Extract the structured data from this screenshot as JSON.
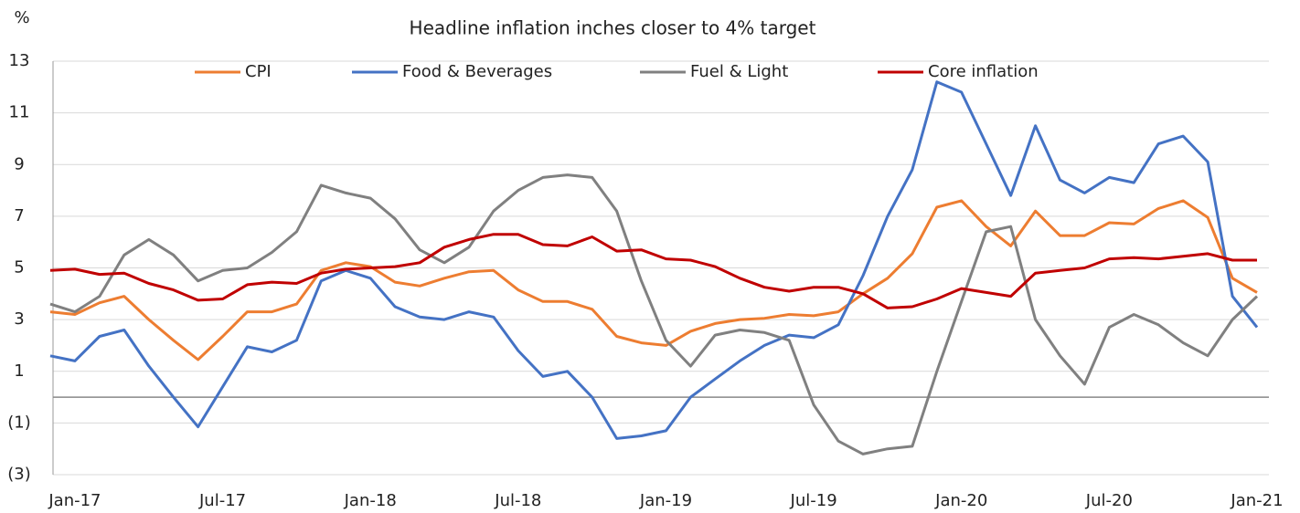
{
  "chart_data": {
    "type": "line",
    "title": "Headline inflation inches closer to 4% target",
    "y_label": "%",
    "categories": [
      null,
      "Jan-17",
      null,
      null,
      null,
      null,
      null,
      "Jul-17",
      null,
      null,
      null,
      null,
      null,
      "Jan-18",
      null,
      null,
      null,
      null,
      null,
      "Jul-18",
      null,
      null,
      null,
      null,
      null,
      "Jan-19",
      null,
      null,
      null,
      null,
      null,
      "Jul-19",
      null,
      null,
      null,
      null,
      null,
      "Jan-20",
      null,
      null,
      null,
      null,
      null,
      "Jul-20",
      null,
      null,
      null,
      null,
      null,
      "Jan-21"
    ],
    "series": [
      {
        "name": "CPI",
        "color": "#ed7d31",
        "values": [
          3.3,
          3.2,
          3.65,
          3.9,
          3.0,
          2.2,
          1.45,
          2.35,
          3.3,
          3.3,
          3.6,
          4.9,
          5.2,
          5.05,
          4.45,
          4.3,
          4.6,
          4.85,
          4.9,
          4.15,
          3.7,
          3.7,
          3.4,
          2.35,
          2.1,
          2.0,
          2.55,
          2.85,
          3.0,
          3.05,
          3.2,
          3.15,
          3.3,
          4.0,
          4.6,
          5.55,
          7.35,
          7.6,
          6.6,
          5.85,
          7.2,
          6.25,
          6.25,
          6.75,
          6.7,
          7.3,
          7.6,
          6.95,
          4.6,
          4.05
        ]
      },
      {
        "name": "Food & Beverages",
        "color": "#4472c4",
        "values": [
          1.6,
          1.4,
          2.35,
          2.6,
          1.2,
          0.0,
          -1.15,
          0.4,
          1.95,
          1.75,
          2.2,
          4.5,
          4.9,
          4.6,
          3.5,
          3.1,
          3.0,
          3.3,
          3.1,
          1.8,
          0.8,
          1.0,
          0.0,
          -1.6,
          -1.5,
          -1.3,
          0.0,
          0.7,
          1.4,
          2.0,
          2.4,
          2.3,
          2.8,
          4.7,
          7.0,
          8.8,
          12.2,
          11.8,
          9.8,
          7.8,
          10.5,
          8.4,
          7.9,
          8.5,
          8.3,
          9.8,
          10.1,
          9.1,
          3.9,
          2.7
        ]
      },
      {
        "name": "Fuel & Light",
        "color": "#808080",
        "values": [
          3.6,
          3.3,
          3.9,
          5.5,
          6.1,
          5.5,
          4.5,
          4.9,
          5.0,
          5.6,
          6.4,
          8.2,
          7.9,
          7.7,
          6.9,
          5.7,
          5.2,
          5.8,
          7.2,
          8.0,
          8.5,
          8.6,
          8.5,
          7.2,
          4.5,
          2.2,
          1.2,
          2.4,
          2.6,
          2.5,
          2.2,
          -0.3,
          -1.7,
          -2.2,
          -2.0,
          -1.9,
          1.0,
          3.7,
          6.4,
          6.6,
          3.0,
          1.6,
          0.5,
          2.7,
          3.2,
          2.8,
          2.1,
          1.6,
          3.0,
          3.9
        ]
      },
      {
        "name": "Core inflation",
        "color": "#c00000",
        "values": [
          4.9,
          4.95,
          4.75,
          4.8,
          4.4,
          4.15,
          3.75,
          3.8,
          4.35,
          4.45,
          4.4,
          4.8,
          4.95,
          5.0,
          5.05,
          5.2,
          5.8,
          6.1,
          6.3,
          6.3,
          5.9,
          5.85,
          6.2,
          5.65,
          5.7,
          5.35,
          5.3,
          5.05,
          4.6,
          4.25,
          4.1,
          4.25,
          4.25,
          4.0,
          3.45,
          3.5,
          3.8,
          4.2,
          4.05,
          3.9,
          4.8,
          4.9,
          5.0,
          5.35,
          5.4,
          5.35,
          5.45,
          5.55,
          5.3,
          5.3
        ]
      }
    ],
    "ylim": [
      -3,
      13
    ],
    "yticks": [
      {
        "value": -3,
        "label": "(3)"
      },
      {
        "value": -1,
        "label": "(1)"
      },
      1,
      3,
      5,
      7,
      9,
      11,
      13
    ],
    "grid": true,
    "zero_line": true,
    "legend": "top"
  }
}
